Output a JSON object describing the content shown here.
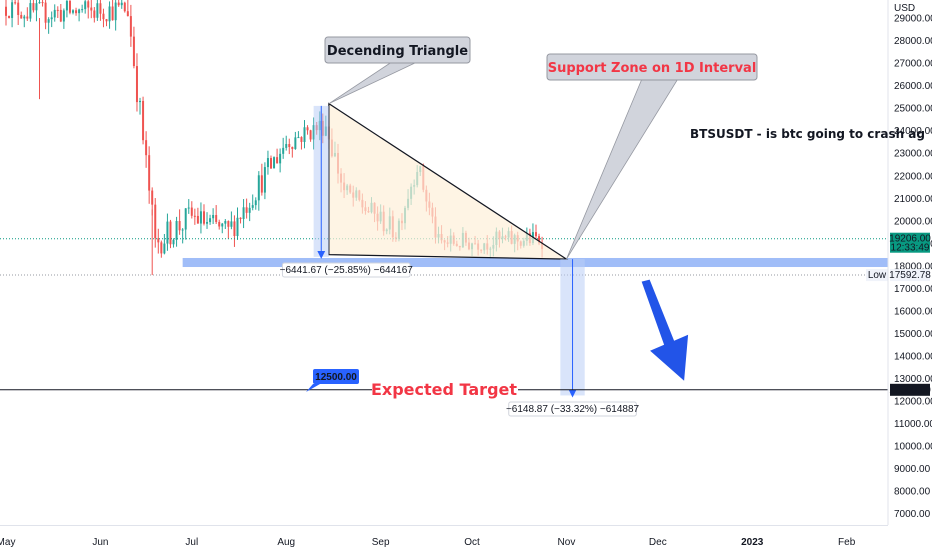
{
  "chart_data": {
    "type": "candlestick",
    "symbol_annotation": "BTSUSDT - is btc going to crash ag",
    "currency_label": "USD",
    "y_ticks": [
      7000,
      8000,
      9000,
      10000,
      11000,
      12000,
      13000,
      14000,
      15000,
      16000,
      17000,
      18000,
      19000,
      20000,
      21000,
      22000,
      23000,
      24000,
      25000,
      26000,
      27000,
      28000,
      29000
    ],
    "ylim": [
      6500,
      29800
    ],
    "x_ticks": [
      {
        "label": "May",
        "date": "2022-05-01"
      },
      {
        "label": "Jun",
        "date": "2022-06-01"
      },
      {
        "label": "Jul",
        "date": "2022-07-01"
      },
      {
        "label": "Aug",
        "date": "2022-08-01"
      },
      {
        "label": "Sep",
        "date": "2022-09-01"
      },
      {
        "label": "Oct",
        "date": "2022-10-01"
      },
      {
        "label": "Nov",
        "date": "2022-11-01"
      },
      {
        "label": "Dec",
        "date": "2022-12-01"
      },
      {
        "label": "2023",
        "date": "2023-01-01"
      },
      {
        "label": "Feb",
        "date": "2023-02-01"
      }
    ],
    "price_segments": [
      {
        "from": "2022-05-01",
        "to": "2022-05-10",
        "start": 29500,
        "end": 29200,
        "amp": 500
      },
      {
        "from": "2022-05-10",
        "to": "2022-06-10",
        "start": 29200,
        "end": 29400,
        "amp": 550
      },
      {
        "from": "2022-06-10",
        "to": "2022-06-19",
        "start": 29400,
        "end": 19000,
        "amp": 700
      },
      {
        "from": "2022-06-19",
        "to": "2022-07-01",
        "start": 19000,
        "end": 20200,
        "amp": 650
      },
      {
        "from": "2022-07-01",
        "to": "2022-07-13",
        "start": 20200,
        "end": 19500,
        "amp": 550
      },
      {
        "from": "2022-07-13",
        "to": "2022-08-01",
        "start": 19500,
        "end": 23500,
        "amp": 600
      },
      {
        "from": "2022-08-01",
        "to": "2022-08-14",
        "start": 23500,
        "end": 24300,
        "amp": 500
      },
      {
        "from": "2022-08-14",
        "to": "2022-08-20",
        "start": 24300,
        "end": 21300,
        "amp": 600
      },
      {
        "from": "2022-08-20",
        "to": "2022-09-06",
        "start": 21300,
        "end": 19500,
        "amp": 500
      },
      {
        "from": "2022-09-06",
        "to": "2022-09-13",
        "start": 19500,
        "end": 22500,
        "amp": 500
      },
      {
        "from": "2022-09-13",
        "to": "2022-09-20",
        "start": 22500,
        "end": 19000,
        "amp": 500
      },
      {
        "from": "2022-09-20",
        "to": "2022-10-25",
        "start": 19000,
        "end": 19200,
        "amp": 450
      }
    ],
    "current_price": {
      "value": 19206.0,
      "label": "19206.00",
      "countdown": "12:33:49"
    },
    "low_marker": {
      "label": "Low",
      "value": 17592.78,
      "value_label": "17592.78"
    },
    "target": {
      "value": 12500,
      "label": "12500.00",
      "text": "Expected Target"
    },
    "support_zone": {
      "top": 18350,
      "bottom": 17950,
      "from": "2022-06-28",
      "to": "2023-03-01",
      "label": "Support Zone on 1D Interval"
    },
    "triangle": {
      "label": "Decending Triangle",
      "apex_top": {
        "date": "2022-08-15",
        "price": 25200
      },
      "base_left": {
        "date": "2022-08-15",
        "price": 18500
      },
      "apex_right": {
        "date": "2022-11-01",
        "price": 18300
      }
    },
    "measure_1": {
      "from_date": "2022-08-10",
      "to_date": "2022-08-15",
      "top": 25100,
      "bottom": 18400,
      "label": "−6441.67 (−25.85%) −644167"
    },
    "measure_2": {
      "from_date": "2022-10-30",
      "to_date": "2022-11-07",
      "top": 18300,
      "bottom": 12250,
      "label": "−6148.87 (−33.32%) −614887"
    },
    "arrow": {
      "from_date": "2022-11-27",
      "from_price": 17300,
      "to_date": "2022-12-07",
      "to_price": 12900
    },
    "colors": {
      "up": "#26a69a",
      "down": "#ef5350",
      "zone": "#8fb2f7",
      "measure": "#b9cdf5",
      "arrow": "#2254e8",
      "target_text": "#f23645",
      "zone_label": "#f23645",
      "triangle_fill": "#fdf0d8",
      "price_badge": "#089981",
      "target_badge": "#2962ff"
    }
  }
}
